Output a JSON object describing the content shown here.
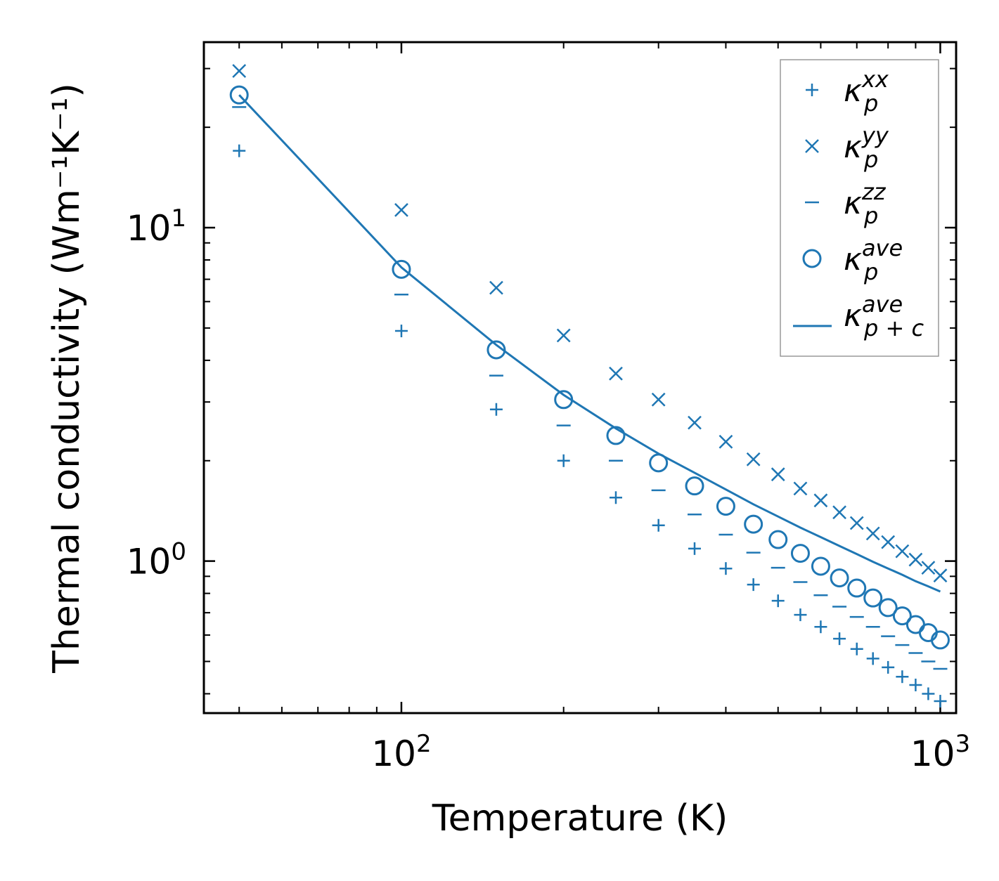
{
  "chart_data": {
    "type": "scatter",
    "xscale": "log",
    "yscale": "log",
    "xlabel": "Temperature (K)",
    "ylabel": "Thermal conductivity (Wm⁻¹K⁻¹)",
    "xlim": [
      43,
      1070
    ],
    "ylim": [
      0.35,
      36
    ],
    "xticks": [
      {
        "value": 100,
        "base": "10",
        "exp": "2"
      },
      {
        "value": 1000,
        "base": "10",
        "exp": "3"
      }
    ],
    "yticks": [
      {
        "value": 1,
        "base": "10",
        "exp": "0"
      },
      {
        "value": 10,
        "base": "10",
        "exp": "1"
      }
    ],
    "color": "#1f77b4",
    "x": [
      50,
      100,
      150,
      200,
      250,
      300,
      350,
      400,
      450,
      500,
      550,
      600,
      650,
      700,
      750,
      800,
      850,
      900,
      950,
      1000
    ],
    "series": [
      {
        "name": "kappa_p_xx",
        "label": {
          "main": "κ",
          "sub": "p",
          "sup": "xx"
        },
        "marker": "plus",
        "values": [
          17.0,
          4.9,
          2.85,
          2.0,
          1.55,
          1.28,
          1.09,
          0.95,
          0.85,
          0.76,
          0.69,
          0.635,
          0.585,
          0.545,
          0.51,
          0.48,
          0.45,
          0.425,
          0.4,
          0.38
        ]
      },
      {
        "name": "kappa_p_yy",
        "label": {
          "main": "κ",
          "sub": "p",
          "sup": "yy"
        },
        "marker": "x",
        "values": [
          29.5,
          11.3,
          6.6,
          4.75,
          3.65,
          3.05,
          2.6,
          2.28,
          2.02,
          1.82,
          1.65,
          1.52,
          1.4,
          1.3,
          1.21,
          1.14,
          1.07,
          1.01,
          0.955,
          0.905
        ]
      },
      {
        "name": "kappa_p_zz",
        "label": {
          "main": "κ",
          "sub": "p",
          "sup": "zz"
        },
        "marker": "hline",
        "values": [
          23.0,
          6.3,
          3.6,
          2.55,
          2.0,
          1.63,
          1.38,
          1.2,
          1.06,
          0.955,
          0.865,
          0.79,
          0.73,
          0.68,
          0.635,
          0.595,
          0.56,
          0.53,
          0.5,
          0.475
        ]
      },
      {
        "name": "kappa_p_ave",
        "label": {
          "main": "κ",
          "sub": "p",
          "sup": "ave"
        },
        "marker": "circle",
        "values": [
          25.0,
          7.5,
          4.3,
          3.05,
          2.38,
          1.97,
          1.68,
          1.46,
          1.29,
          1.16,
          1.055,
          0.965,
          0.89,
          0.83,
          0.775,
          0.725,
          0.685,
          0.645,
          0.61,
          0.58
        ]
      },
      {
        "name": "kappa_pc_ave",
        "label": {
          "main": "κ",
          "sub": "p + c",
          "sup": "ave"
        },
        "marker": "line",
        "values": [
          25.0,
          7.6,
          4.45,
          3.15,
          2.5,
          2.1,
          1.84,
          1.64,
          1.48,
          1.36,
          1.26,
          1.18,
          1.11,
          1.05,
          0.995,
          0.95,
          0.91,
          0.87,
          0.84,
          0.81
        ]
      }
    ],
    "legend": {
      "position": "top-right"
    }
  }
}
